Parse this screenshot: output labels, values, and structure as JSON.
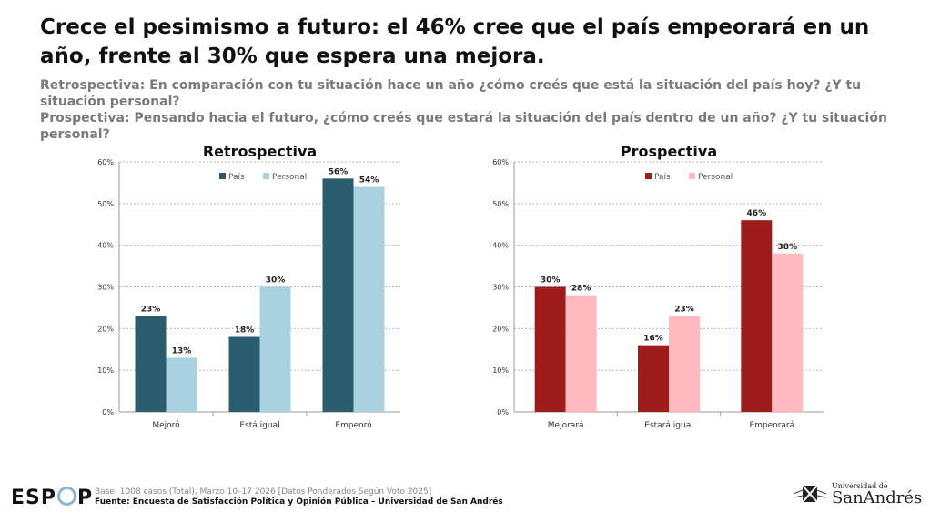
{
  "title": "Crece el pesimismo a futuro: el 46% cree que el país empeorará en un año, frente al 30% que espera una mejora.",
  "subtitle_retro": "Retrospectiva: En comparación con tu situación hace un año ¿cómo creés que está la situación del país hoy? ¿Y tu situación personal?",
  "subtitle_pro": "Prospectiva: Pensando hacia el futuro, ¿cómo creés que estará la situación del país dentro de un año? ¿Y tu situación personal?",
  "chart_data": [
    {
      "type": "bar",
      "title": "Retrospectiva",
      "categories": [
        "Mejoró",
        "Está igual",
        "Empeoró"
      ],
      "ylim": [
        0,
        60
      ],
      "yticks": [
        "0%",
        "10%",
        "20%",
        "30%",
        "40%",
        "50%",
        "60%"
      ],
      "legend": "top-center",
      "series": [
        {
          "name": "País",
          "color": "#2b5c6e",
          "values": [
            23,
            18,
            56
          ]
        },
        {
          "name": "Personal",
          "color": "#a9d1e0",
          "values": [
            13,
            30,
            54
          ]
        }
      ]
    },
    {
      "type": "bar",
      "title": "Prospectiva",
      "categories": [
        "Mejorará",
        "Estará igual",
        "Empeorará"
      ],
      "ylim": [
        0,
        60
      ],
      "yticks": [
        "0%",
        "10%",
        "20%",
        "30%",
        "40%",
        "50%",
        "60%"
      ],
      "legend": "top-left",
      "series": [
        {
          "name": "País",
          "color": "#9e1c1c",
          "values": [
            30,
            16,
            46
          ]
        },
        {
          "name": "Personal",
          "color": "#ffb9bf",
          "values": [
            28,
            23,
            38
          ]
        }
      ]
    }
  ],
  "footer": {
    "base": "Base: 1008 casos (Total), Marzo 10–17 2026 [Datos Ponderados Según Voto 2025]",
    "source": "Fuente: Encuesta de Satisfacción Política y Opinión Pública – Universidad de San Andrés",
    "logo_left": "ESPOP",
    "logo_right_top": "Universidad de",
    "logo_right_bottom": "SanAndrés"
  }
}
